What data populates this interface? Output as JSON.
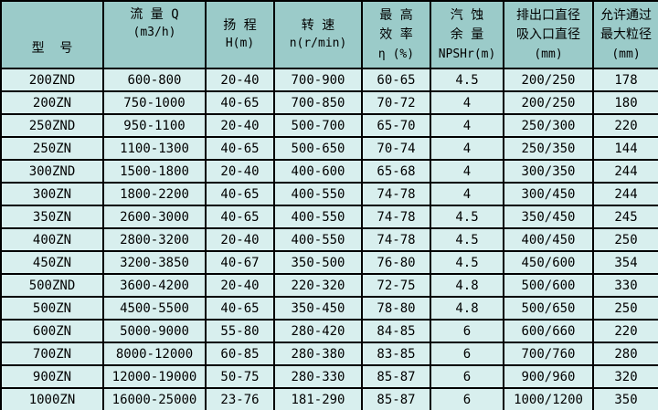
{
  "colors": {
    "header_bg": "#9bcbc9",
    "row_bg": "#d8efee",
    "border": "#000000",
    "text": "#000000"
  },
  "table": {
    "columns": [
      {
        "key": "model",
        "lines": [
          "型  号"
        ]
      },
      {
        "key": "flow",
        "lines": [
          "流 量 Q",
          "(m3/h)"
        ]
      },
      {
        "key": "head",
        "lines": [
          "扬 程",
          "H(m)"
        ]
      },
      {
        "key": "speed",
        "lines": [
          "转 速",
          "n(r/min)"
        ]
      },
      {
        "key": "efficiency",
        "lines": [
          "最 高",
          "效 率",
          "η (%)"
        ]
      },
      {
        "key": "npsh",
        "lines": [
          "汽 蚀",
          "余 量",
          "NPSHr(m)"
        ]
      },
      {
        "key": "diameters",
        "lines": [
          "排出口直径",
          "吸入口直径",
          "(mm)"
        ]
      },
      {
        "key": "max_particle",
        "lines": [
          "允许通过",
          "最大粒径",
          "(mm)"
        ]
      }
    ],
    "rows": [
      [
        "200ZND",
        "600-800",
        "20-40",
        "700-900",
        "60-65",
        "4.5",
        "200/250",
        "178"
      ],
      [
        "200ZN",
        "750-1000",
        "40-65",
        "700-850",
        "70-72",
        "4",
        "200/250",
        "180"
      ],
      [
        "250ZND",
        "950-1100",
        "20-40",
        "500-700",
        "65-70",
        "4",
        "250/300",
        "220"
      ],
      [
        "250ZN",
        "1100-1300",
        "40-65",
        "500-650",
        "70-74",
        "4",
        "250/350",
        "144"
      ],
      [
        "300ZND",
        "1500-1800",
        "20-40",
        "400-600",
        "65-68",
        "4",
        "300/350",
        "244"
      ],
      [
        "300ZN",
        "1800-2200",
        "40-65",
        "400-550",
        "74-78",
        "4",
        "300/450",
        "244"
      ],
      [
        "350ZN",
        "2600-3000",
        "40-65",
        "400-550",
        "74-78",
        "4.5",
        "350/450",
        "245"
      ],
      [
        "400ZN",
        "2800-3200",
        "20-40",
        "400-550",
        "74-78",
        "4.5",
        "400/450",
        "250"
      ],
      [
        "450ZN",
        "3200-3850",
        "40-67",
        "350-500",
        "76-80",
        "4.5",
        "450/600",
        "354"
      ],
      [
        "500ZND",
        "3600-4200",
        "20-40",
        "220-320",
        "72-75",
        "4.8",
        "500/600",
        "330"
      ],
      [
        "500ZN",
        "4500-5500",
        "40-65",
        "350-450",
        "78-80",
        "4.8",
        "500/650",
        "250"
      ],
      [
        "600ZN",
        "5000-9000",
        "55-80",
        "280-420",
        "84-85",
        "6",
        "600/660",
        "220"
      ],
      [
        "700ZN",
        "8000-12000",
        "60-85",
        "280-380",
        "83-85",
        "6",
        "700/760",
        "280"
      ],
      [
        "900ZN",
        "12000-19000",
        "50-75",
        "280-330",
        "85-87",
        "6",
        "900/960",
        "320"
      ],
      [
        "1000ZN",
        "16000-25000",
        "23-76",
        "181-290",
        "85-87",
        "6",
        "1000/1200",
        "350"
      ]
    ]
  }
}
